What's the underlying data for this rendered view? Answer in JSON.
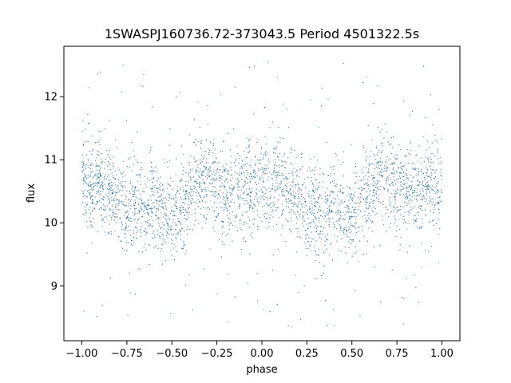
{
  "chart_data": {
    "type": "scatter",
    "title": "1SWASPJ160736.72-373043.5 Period 4501322.5s",
    "xlabel": "phase",
    "ylabel": "flux",
    "xlim": [
      -1.1,
      1.1
    ],
    "ylim": [
      8.13,
      12.8
    ],
    "xticks": [
      -1.0,
      -0.75,
      -0.5,
      -0.25,
      0.0,
      0.25,
      0.5,
      0.75,
      1.0
    ],
    "xtick_labels": [
      "−1.00",
      "−0.75",
      "−0.50",
      "−0.25",
      "0.00",
      "0.25",
      "0.50",
      "0.75",
      "1.00"
    ],
    "yticks": [
      9,
      10,
      11,
      12
    ],
    "ytick_labels": [
      "9",
      "10",
      "11",
      "12"
    ],
    "grid": false,
    "marker_color": "#1f77b4",
    "series": [
      {
        "profile_points": [
          [
            0.0,
            10.65
          ],
          [
            0.05,
            10.55
          ],
          [
            0.1,
            10.7
          ],
          [
            0.15,
            10.55
          ],
          [
            0.2,
            10.45
          ],
          [
            0.25,
            10.1
          ],
          [
            0.3,
            10.3
          ],
          [
            0.35,
            10.2
          ],
          [
            0.4,
            10.35
          ],
          [
            0.45,
            10.15
          ],
          [
            0.5,
            10.05
          ],
          [
            0.55,
            10.25
          ],
          [
            0.6,
            10.45
          ],
          [
            0.65,
            10.75
          ],
          [
            0.7,
            10.7
          ],
          [
            0.75,
            10.55
          ],
          [
            0.8,
            10.45
          ],
          [
            0.85,
            10.5
          ],
          [
            0.9,
            10.55
          ],
          [
            0.95,
            10.6
          ],
          [
            1.0,
            10.65
          ]
        ],
        "scatter_sd": 0.35,
        "outlier_range": [
          8.3,
          12.6
        ]
      }
    ]
  }
}
